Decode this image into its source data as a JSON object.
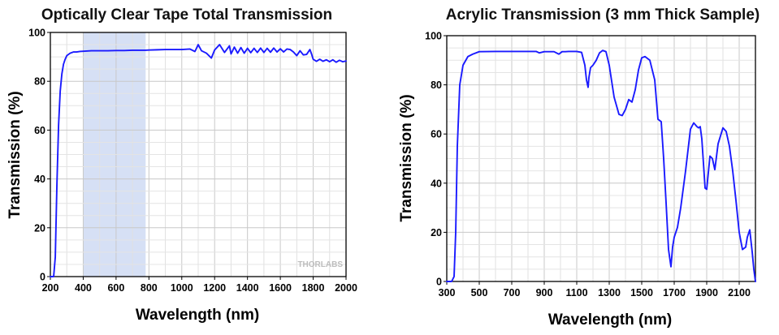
{
  "chart_data": [
    {
      "type": "line",
      "title": "Optically Clear Tape Total Transmission",
      "xlabel": "Wavelength (nm)",
      "ylabel": "Transmission (%)",
      "xlim": [
        200,
        2000
      ],
      "ylim": [
        0,
        100
      ],
      "xticks": [
        200,
        400,
        600,
        800,
        1000,
        1200,
        1400,
        1600,
        1800,
        2000
      ],
      "yticks": [
        0,
        20,
        40,
        60,
        80,
        100
      ],
      "grid": true,
      "line_color": "#1a1aff",
      "shaded_band": {
        "x_range": [
          400,
          780
        ],
        "color": "#d6e0f5"
      },
      "watermark": "THORLABS",
      "series": [
        {
          "x": [
            200,
            220,
            230,
            240,
            250,
            260,
            270,
            280,
            290,
            300,
            320,
            340,
            360,
            380,
            400,
            450,
            500,
            550,
            600,
            650,
            700,
            750,
            780,
            800,
            850,
            900,
            950,
            1000,
            1050,
            1080,
            1100,
            1120,
            1150,
            1180,
            1200,
            1230,
            1260,
            1290,
            1300,
            1320,
            1340,
            1360,
            1380,
            1400,
            1420,
            1440,
            1460,
            1480,
            1500,
            1520,
            1540,
            1560,
            1580,
            1600,
            1620,
            1640,
            1660,
            1680,
            1700,
            1720,
            1740,
            1760,
            1780,
            1790,
            1800,
            1820,
            1840,
            1860,
            1880,
            1900,
            1920,
            1940,
            1960,
            1980,
            2000
          ],
          "y": [
            0,
            0,
            8,
            38,
            62,
            76,
            83,
            87,
            89,
            90.5,
            91.5,
            92,
            92,
            92.2,
            92.3,
            92.5,
            92.5,
            92.5,
            92.6,
            92.6,
            92.7,
            92.7,
            92.7,
            92.8,
            92.9,
            93,
            93,
            93,
            93.2,
            92.2,
            95,
            92.5,
            91.5,
            89.5,
            92.8,
            95,
            91.8,
            94.5,
            91.2,
            94,
            91.5,
            93.8,
            91.5,
            93.5,
            91.7,
            93.5,
            91.8,
            93.6,
            91.8,
            93.5,
            91.9,
            93.6,
            92,
            93.3,
            92,
            93.2,
            93,
            92,
            90.5,
            92.5,
            90.8,
            91,
            93,
            91.2,
            89,
            88.2,
            89,
            88.2,
            88.8,
            88,
            88.8,
            87.8,
            88.6,
            88,
            88.3
          ]
        }
      ]
    },
    {
      "type": "line",
      "title": "Acrylic Transmission (3 mm Thick Sample)",
      "xlabel": "Wavelength (nm)",
      "ylabel": "Transmission (%)",
      "xlim": [
        300,
        2200
      ],
      "ylim": [
        0,
        100
      ],
      "xticks": [
        300,
        500,
        700,
        900,
        1100,
        1300,
        1500,
        1700,
        1900,
        2100
      ],
      "yticks": [
        0,
        20,
        40,
        60,
        80,
        100
      ],
      "grid": true,
      "line_color": "#1a1aff",
      "series": [
        {
          "x": [
            300,
            330,
            345,
            355,
            365,
            380,
            400,
            430,
            460,
            500,
            600,
            700,
            800,
            850,
            870,
            900,
            920,
            960,
            990,
            1010,
            1030,
            1050,
            1100,
            1130,
            1150,
            1160,
            1170,
            1175,
            1185,
            1200,
            1220,
            1240,
            1260,
            1280,
            1300,
            1330,
            1360,
            1380,
            1400,
            1420,
            1440,
            1460,
            1480,
            1500,
            1520,
            1550,
            1580,
            1600,
            1620,
            1635,
            1650,
            1665,
            1680,
            1690,
            1700,
            1720,
            1740,
            1770,
            1800,
            1820,
            1840,
            1850,
            1860,
            1870,
            1880,
            1890,
            1900,
            1920,
            1935,
            1950,
            1970,
            2000,
            2020,
            2040,
            2060,
            2080,
            2100,
            2120,
            2140,
            2150,
            2165,
            2180,
            2190,
            2200
          ],
          "y": [
            0,
            0,
            2,
            20,
            55,
            80,
            88,
            91.5,
            92.5,
            93.5,
            93.6,
            93.6,
            93.6,
            93.6,
            93,
            93.5,
            93.5,
            93.5,
            92.5,
            93.5,
            93.5,
            93.6,
            93.6,
            93.2,
            88,
            82,
            79,
            83,
            87,
            88,
            90,
            93,
            94,
            93.5,
            88,
            75,
            68,
            67.5,
            70,
            74,
            73,
            78,
            86,
            91,
            91.5,
            90,
            82,
            66,
            65,
            50,
            32,
            13,
            6,
            14,
            18,
            22,
            30,
            45,
            62,
            64.5,
            63,
            62.5,
            63,
            58,
            48,
            38,
            37.5,
            51,
            50,
            45.5,
            56,
            62.5,
            61,
            55,
            45,
            33,
            20,
            13,
            14,
            18,
            21,
            12,
            5,
            0
          ]
        }
      ]
    }
  ]
}
